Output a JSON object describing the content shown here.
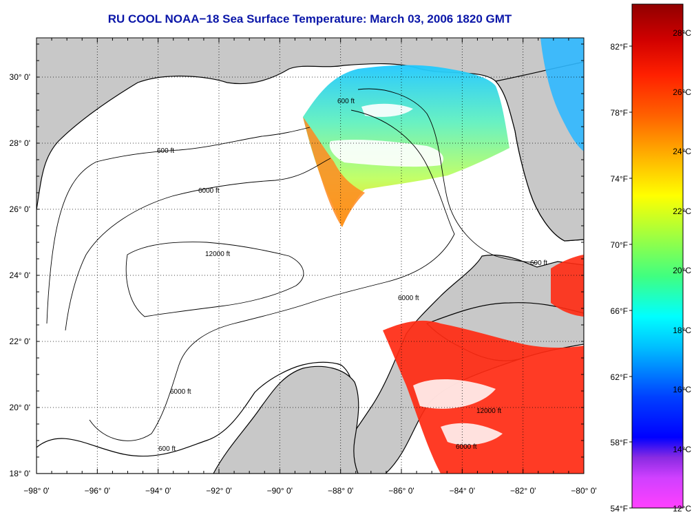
{
  "title": "RU COOL  NOAA−18  Sea Surface Temperature:  March 03, 2006 1820 GMT",
  "map": {
    "lon_ticks": [
      "−98° 0'",
      "−96° 0'",
      "−94° 0'",
      "−92° 0'",
      "−90° 0'",
      "−88° 0'",
      "−86° 0'",
      "−84° 0'",
      "−82° 0'",
      "−80° 0'"
    ],
    "lat_ticks": [
      "30° 0'",
      "28° 0'",
      "26° 0'",
      "24° 0'",
      "22° 0'",
      "20° 0'",
      "18° 0'"
    ],
    "lon_range": [
      -98,
      -80
    ],
    "lat_range": [
      18,
      31.2
    ],
    "grid": "dotted",
    "contour_labels": [
      "600 ft",
      "6000 ft",
      "12000 ft"
    ],
    "colors": {
      "land": "#c8c8c8",
      "water_no_data": "#ffffff",
      "coastline": "#000000"
    }
  },
  "colorbar": {
    "fahrenheit_ticks": [
      "82°F",
      "78°F",
      "74°F",
      "70°F",
      "66°F",
      "62°F",
      "58°F",
      "54°F"
    ],
    "celsius_ticks": [
      "28°C",
      "26°C",
      "24°C",
      "22°C",
      "20°C",
      "18°C",
      "16°C",
      "14°C",
      "12°C"
    ],
    "range_c": [
      12,
      29
    ],
    "stops": [
      "#ff40ff",
      "#8a2be2",
      "#0000ff",
      "#0080ff",
      "#00ffff",
      "#40ff80",
      "#c0ff40",
      "#ffff00",
      "#ffa000",
      "#ff4000",
      "#e00000",
      "#900000"
    ]
  }
}
